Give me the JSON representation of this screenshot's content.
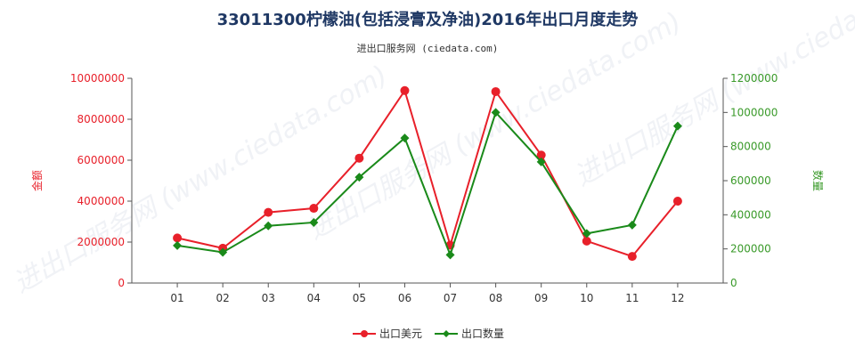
{
  "chart_data": {
    "type": "line",
    "title": "33011300柠檬油(包括浸膏及净油)2016年出口月度走势",
    "subtitle": "进出口服务网 (ciedata.com)",
    "watermark": "进出口服务网 (www.ciedata.com)",
    "categories": [
      "01",
      "02",
      "03",
      "04",
      "05",
      "06",
      "07",
      "08",
      "09",
      "10",
      "11",
      "12"
    ],
    "y_left": {
      "label": "金额",
      "min": 0,
      "max": 10000000,
      "ticks": [
        "0",
        "2000000",
        "4000000",
        "6000000",
        "8000000",
        "10000000"
      ],
      "color": "#e8202a"
    },
    "y_right": {
      "label": "数量",
      "min": 0,
      "max": 1200000,
      "ticks": [
        "0",
        "200000",
        "400000",
        "600000",
        "800000",
        "1000000",
        "1200000"
      ],
      "color": "#3a9a2a"
    },
    "series": [
      {
        "name": "出口美元",
        "axis": "left",
        "color": "#e8202a",
        "marker": "circle",
        "values": [
          2200000,
          1700000,
          3450000,
          3650000,
          6100000,
          9400000,
          1850000,
          9350000,
          6250000,
          2050000,
          1300000,
          4000000
        ]
      },
      {
        "name": "出口数量",
        "axis": "right",
        "color": "#1a8a1a",
        "marker": "diamond",
        "values": [
          220000,
          180000,
          335000,
          355000,
          620000,
          850000,
          165000,
          1000000,
          710000,
          290000,
          340000,
          920000
        ]
      }
    ],
    "legend_position": "bottom-center",
    "grid": false
  }
}
